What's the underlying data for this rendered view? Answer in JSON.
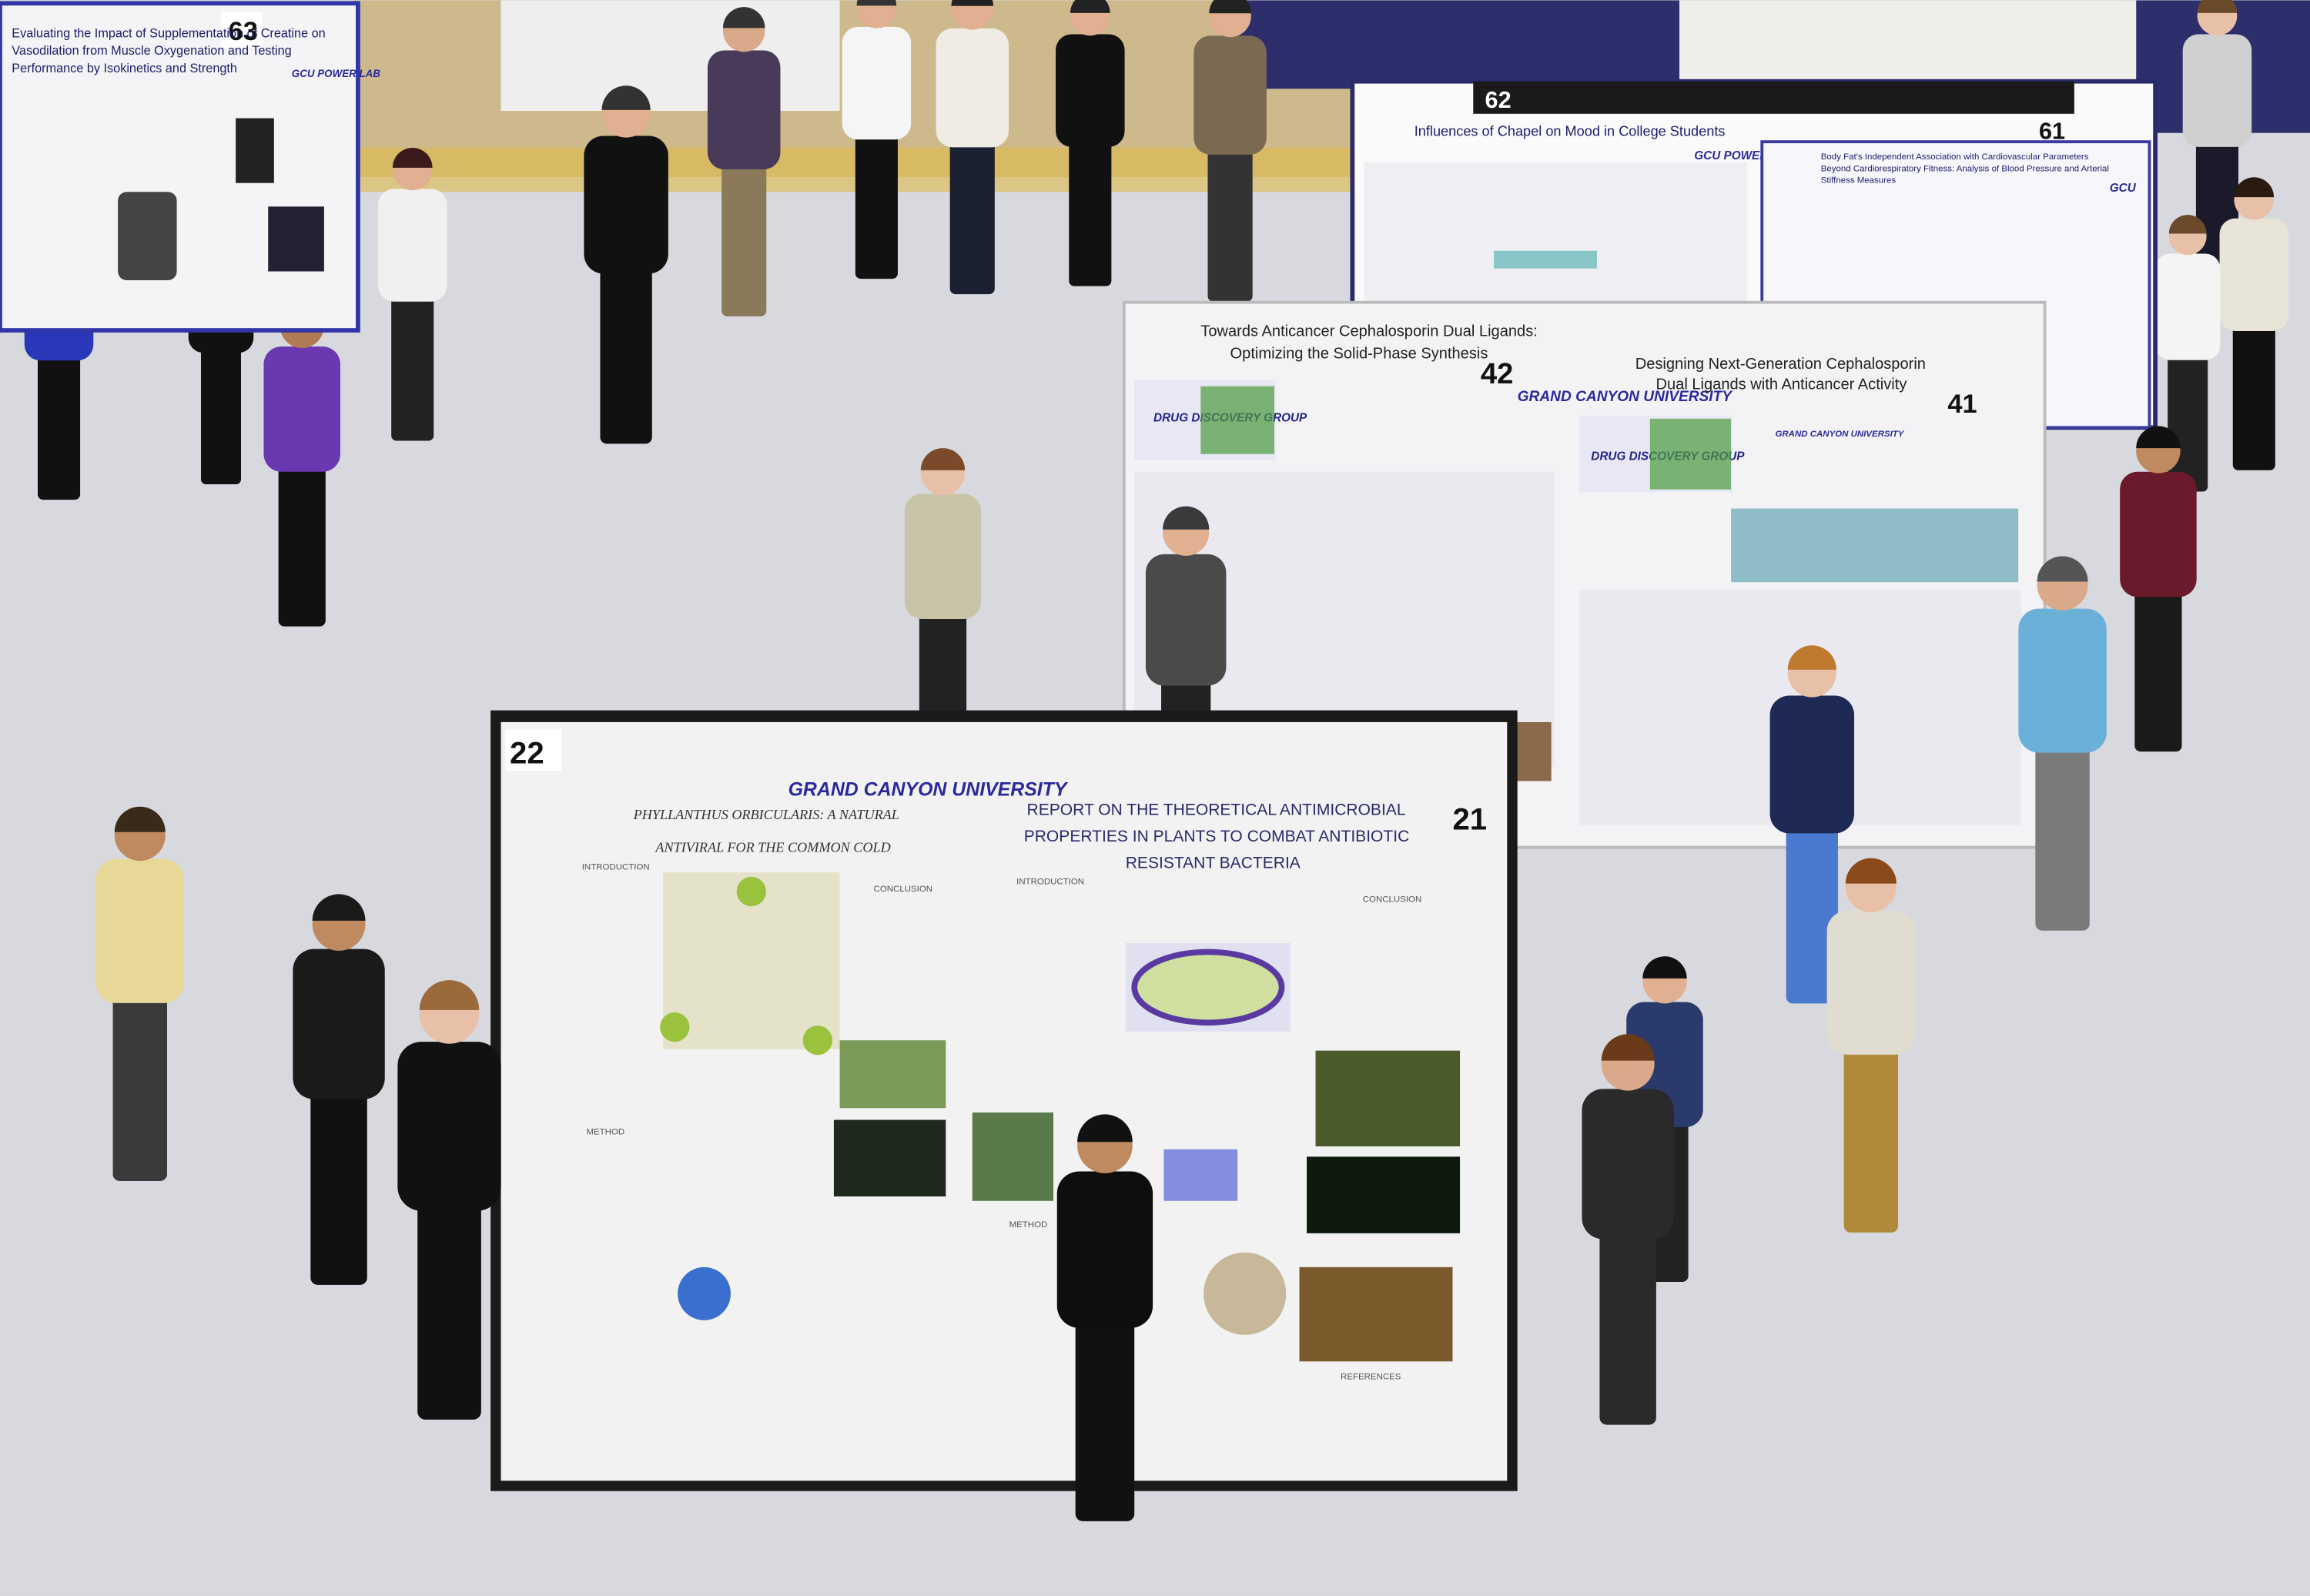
{
  "posters": [
    {
      "number": "63",
      "title_lines": [
        "Evaluating the Impact of Supplementation of Creatine on",
        "Vasodilation from Muscle Oxygenation and Testing",
        "Performance by Isokinetics and Strength"
      ],
      "logo": "GCU POWER LAB"
    },
    {
      "number": "62",
      "title_lines": [
        "Influences of Chapel on Mood in College Students"
      ],
      "logo": "GCU POWER LAB"
    },
    {
      "number": "61",
      "title_lines": [
        "Body Fat's Independent Association with Cardiovascular Parameters",
        "Beyond Cardiorespiratory Fitness: Analysis of Blood Pressure and Arterial",
        "Stiffness Measures"
      ],
      "logo": "GCU"
    },
    {
      "number": "42",
      "title_lines": [
        "Towards Anticancer Cephalosporin Dual Ligands:",
        "Optimizing the Solid-Phase Synthesis"
      ],
      "logo": "DRUG DISCOVERY GROUP",
      "university": "GRAND CANYON UNIVERSITY"
    },
    {
      "number": "41",
      "title_lines": [
        "Designing Next-Generation Cephalosporin",
        "Dual Ligands with Anticancer Activity"
      ],
      "logo": "DRUG DISCOVERY GROUP",
      "university": "GRAND CANYON UNIVERSITY"
    },
    {
      "number": "22",
      "title_lines": [
        "PHYLLANTHUS ORBICULARIS: A NATURAL",
        "ANTIVIRAL FOR THE COMMON COLD"
      ],
      "university": "GRAND CANYON UNIVERSITY",
      "sections": [
        "INTRODUCTION",
        "CONCLUSION",
        "METHOD"
      ]
    },
    {
      "number": "21",
      "title_lines": [
        "REPORT ON THE THEORETICAL ANTIMICROBIAL",
        "PROPERTIES IN PLANTS TO COMBAT ANTIBIOTIC",
        "RESISTANT BACTERIA"
      ],
      "sections": [
        "INTRODUCTION",
        "CONCLUSION",
        "METHOD",
        "REFERENCES"
      ]
    }
  ]
}
